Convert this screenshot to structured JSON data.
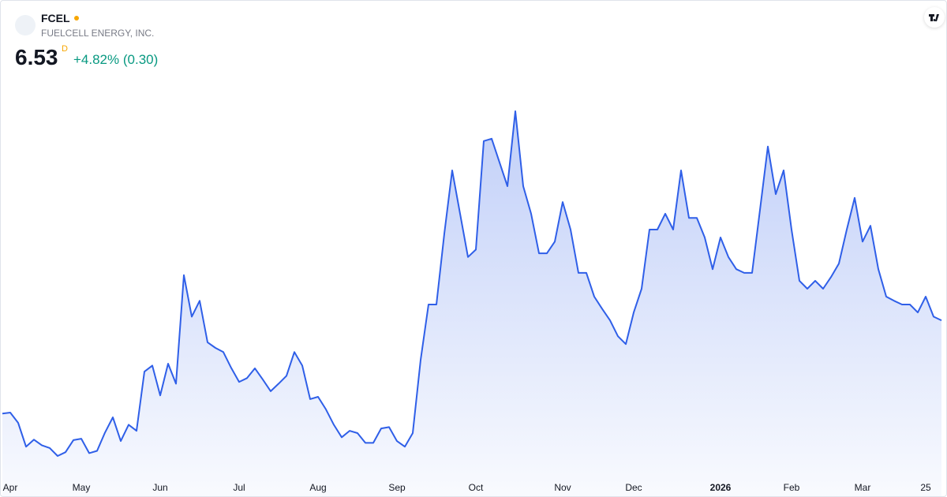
{
  "header": {
    "symbol": "FCEL",
    "name": "FUELCELL ENERGY, INC.",
    "price": "6.53",
    "resolution": "D",
    "change": "+4.82% (0.30)"
  },
  "chart_data": {
    "type": "area",
    "color": "#2f5fe8",
    "ylim": [
      3.23,
      13.39
    ],
    "categories": [
      null,
      "Apr",
      null,
      null,
      null,
      null,
      null,
      null,
      null,
      null,
      "May",
      null,
      null,
      null,
      null,
      null,
      null,
      null,
      null,
      null,
      "Jun",
      null,
      null,
      null,
      null,
      null,
      null,
      null,
      null,
      null,
      "Jul",
      null,
      null,
      null,
      null,
      null,
      null,
      null,
      null,
      null,
      "Aug",
      null,
      null,
      null,
      null,
      null,
      null,
      null,
      null,
      null,
      "Sep",
      null,
      null,
      null,
      null,
      null,
      null,
      null,
      null,
      null,
      "Oct",
      null,
      null,
      null,
      null,
      null,
      null,
      null,
      null,
      null,
      null,
      "Nov",
      null,
      null,
      null,
      null,
      null,
      null,
      null,
      null,
      "Dec",
      null,
      null,
      null,
      null,
      null,
      null,
      null,
      null,
      null,
      null,
      "2026",
      null,
      null,
      null,
      null,
      null,
      null,
      null,
      null,
      "Feb",
      null,
      null,
      null,
      null,
      null,
      null,
      null,
      null,
      "Mar",
      null,
      null,
      null,
      null,
      null,
      null,
      null,
      "25",
      null,
      null
    ],
    "values": [
      4.53,
      4.55,
      4.33,
      3.82,
      3.97,
      3.85,
      3.79,
      3.62,
      3.7,
      3.96,
      3.99,
      3.68,
      3.73,
      4.12,
      4.45,
      3.94,
      4.29,
      4.16,
      5.43,
      5.56,
      4.92,
      5.6,
      5.17,
      7.5,
      6.61,
      6.95,
      6.06,
      5.94,
      5.85,
      5.51,
      5.21,
      5.29,
      5.5,
      5.26,
      5.01,
      5.17,
      5.34,
      5.85,
      5.56,
      4.84,
      4.89,
      4.62,
      4.29,
      4.02,
      4.16,
      4.11,
      3.9,
      3.9,
      4.21,
      4.24,
      3.94,
      3.82,
      4.11,
      5.68,
      6.87,
      6.87,
      8.39,
      9.75,
      8.82,
      7.89,
      8.05,
      10.38,
      10.43,
      9.92,
      9.41,
      11.02,
      9.41,
      8.82,
      7.97,
      7.97,
      8.22,
      9.07,
      8.48,
      7.55,
      7.55,
      7.04,
      6.78,
      6.53,
      6.19,
      6.02,
      6.7,
      7.21,
      8.48,
      8.48,
      8.82,
      8.48,
      9.75,
      8.73,
      8.73,
      8.31,
      7.63,
      8.31,
      7.89,
      7.63,
      7.55,
      7.55,
      8.9,
      10.26,
      9.24,
      9.75,
      8.48,
      7.38,
      7.21,
      7.38,
      7.21,
      7.46,
      7.75,
      8.48,
      9.16,
      8.22,
      8.56,
      7.63,
      7.04,
      6.95,
      6.87,
      6.87,
      6.7,
      7.04,
      6.61,
      6.53
    ]
  }
}
